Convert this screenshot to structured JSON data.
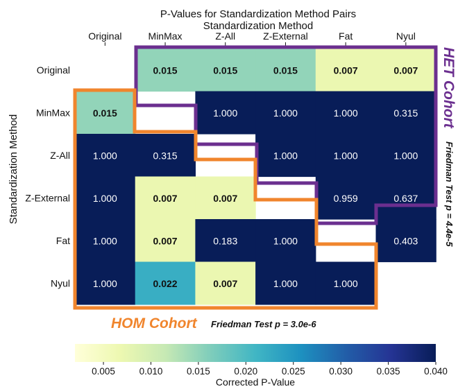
{
  "chart_data": {
    "type": "heatmap",
    "title": "P-Values for Standardization Method Pairs",
    "xlabel": "Standardization Method",
    "ylabel": "Standardization Method",
    "x_categories": [
      "Original",
      "MinMax",
      "Z-All",
      "Z-External",
      "Fat",
      "Nyul"
    ],
    "y_categories": [
      "Original",
      "MinMax",
      "Z-All",
      "Z-External",
      "Fat",
      "Nyul"
    ],
    "values": [
      [
        null,
        0.015,
        0.015,
        0.015,
        0.007,
        0.007
      ],
      [
        0.015,
        null,
        1.0,
        1.0,
        1.0,
        0.315
      ],
      [
        1.0,
        0.315,
        null,
        1.0,
        1.0,
        1.0
      ],
      [
        1.0,
        0.007,
        0.007,
        null,
        0.959,
        0.637
      ],
      [
        1.0,
        0.007,
        0.183,
        1.0,
        null,
        0.403
      ],
      [
        1.0,
        0.022,
        0.007,
        1.0,
        1.0,
        null
      ]
    ],
    "cell_labels": [
      [
        "",
        "0.015",
        "0.015",
        "0.015",
        "0.007",
        "0.007"
      ],
      [
        "0.015",
        "",
        "1.000",
        "1.000",
        "1.000",
        "0.315"
      ],
      [
        "1.000",
        "0.315",
        "",
        "1.000",
        "1.000",
        "1.000"
      ],
      [
        "1.000",
        "0.007",
        "0.007",
        "",
        "0.959",
        "0.637"
      ],
      [
        "1.000",
        "0.007",
        "0.183",
        "1.000",
        "",
        "0.403"
      ],
      [
        "1.000",
        "0.022",
        "0.007",
        "1.000",
        "1.000",
        ""
      ]
    ],
    "significance_threshold": 0.05,
    "colorbar": {
      "label": "Corrected P-Value",
      "range": [
        0.002,
        0.04
      ],
      "ticks": [
        "0.005",
        "0.010",
        "0.015",
        "0.020",
        "0.025",
        "0.030",
        "0.035",
        "0.040"
      ],
      "colormap": "YlGnBu"
    },
    "groups": [
      {
        "name": "HET Cohort",
        "test_label": "Friedman Test p = 4.4e-5",
        "region": "upper-triangle",
        "color": "#6b2f8f"
      },
      {
        "name": "HOM Cohort",
        "test_label": "Friedman Test p = 3.0e-6",
        "region": "lower-triangle",
        "color": "#f0852d"
      }
    ]
  }
}
